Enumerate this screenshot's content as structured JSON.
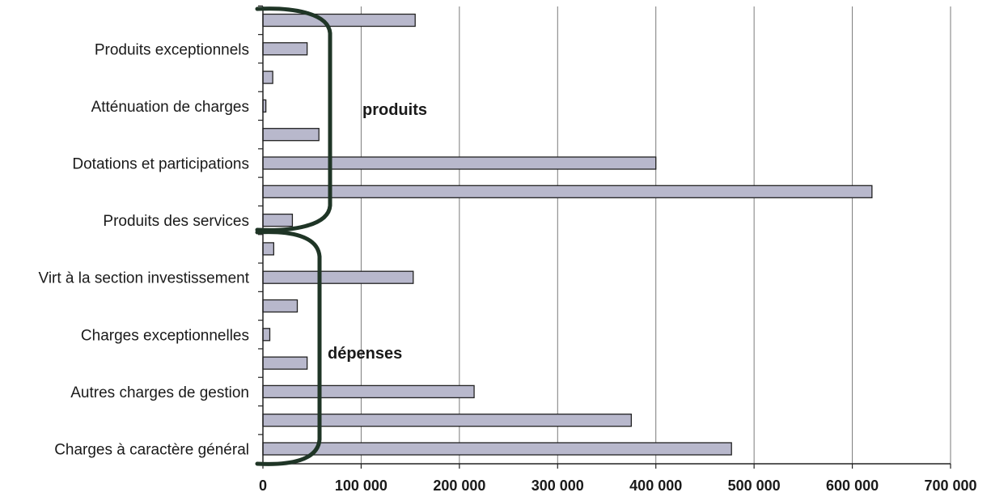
{
  "chart_data": {
    "type": "bar",
    "orientation": "horizontal",
    "bar_color": "#b8b8cc",
    "bar_edge_color": "#222222",
    "brace_color": "#1f3526",
    "grid": true,
    "xlim": [
      0,
      700000
    ],
    "x_ticks": [
      "0",
      "100 000",
      "200 000",
      "300 000",
      "400 000",
      "500 000",
      "600 000",
      "700 000"
    ],
    "x_tick_values": [
      0,
      100000,
      200000,
      300000,
      400000,
      500000,
      600000,
      700000
    ],
    "rows": [
      {
        "label": "",
        "value": 155000
      },
      {
        "label": "Produits exceptionnels",
        "value": 45000
      },
      {
        "label": "",
        "value": 10000
      },
      {
        "label": "Atténuation de charges",
        "value": 3000
      },
      {
        "label": "",
        "value": 57000
      },
      {
        "label": "Dotations et participations",
        "value": 400000
      },
      {
        "label": "",
        "value": 620000
      },
      {
        "label": "Produits des services",
        "value": 30000
      },
      {
        "label": "",
        "value": 11000
      },
      {
        "label": "Virt à la section investissement",
        "value": 153000
      },
      {
        "label": "",
        "value": 35000
      },
      {
        "label": "Charges exceptionnelles",
        "value": 7000
      },
      {
        "label": "",
        "value": 45000
      },
      {
        "label": "Autres charges de gestion",
        "value": 215000
      },
      {
        "label": "",
        "value": 375000
      },
      {
        "label": "Charges à caractère général",
        "value": 477000
      }
    ],
    "groups": [
      {
        "label": "produits",
        "from_row": 0,
        "to_row": 7
      },
      {
        "label": "dépenses",
        "from_row": 8,
        "to_row": 15
      }
    ]
  }
}
